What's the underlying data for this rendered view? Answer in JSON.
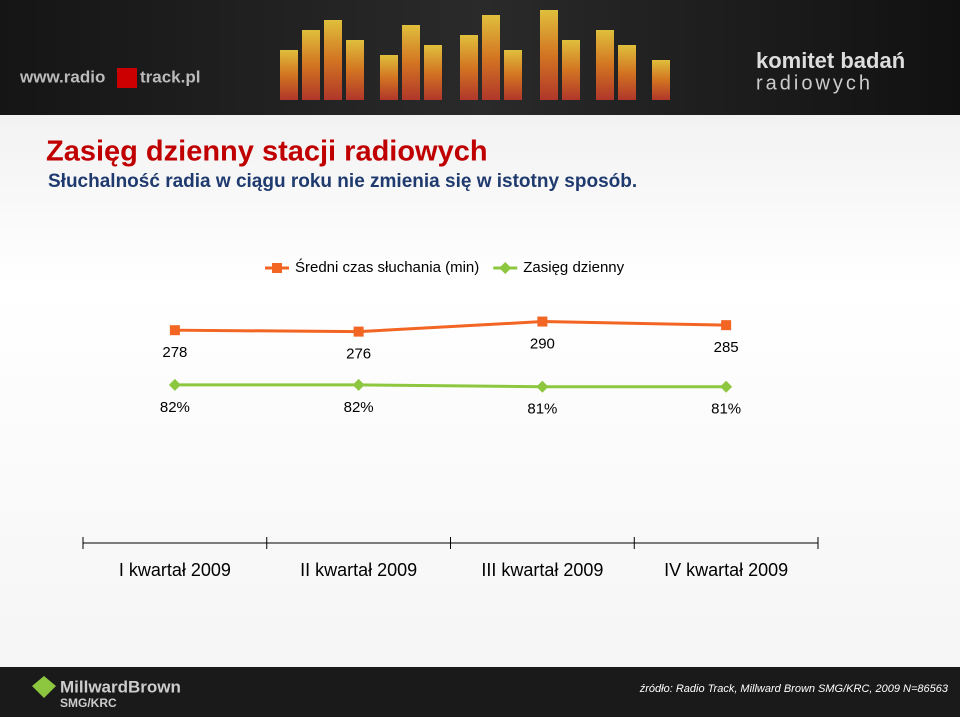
{
  "header": {
    "logo_left": "www.radio",
    "logo_left_2": "track.pl",
    "logo_right": "komitet badań",
    "logo_right_2": "radiowych"
  },
  "chart_data": {
    "type": "line",
    "title": "Zasięg dzienny stacji radiowych",
    "subtitle": "Słuchalność radia w ciągu roku nie zmienia się w istotny sposób.",
    "categories": [
      "I kwartał 2009",
      "II kwartał 2009",
      "III kwartał 2009",
      "IV kwartał 2009"
    ],
    "series": [
      {
        "name": "Średni czas słuchania (min)",
        "color": "#f26522",
        "marker": "square",
        "values": [
          278,
          276,
          290,
          285
        ]
      },
      {
        "name": "Zasięg dzienny",
        "color": "#8dc63f",
        "marker": "diamond",
        "axis": "y2",
        "values": [
          82,
          82,
          81,
          81
        ],
        "value_labels": [
          "82%",
          "82%",
          "81%",
          "81%"
        ]
      }
    ],
    "ylim": [
      0,
      320
    ],
    "y2lim": [
      0,
      130
    ],
    "legend": "top"
  },
  "footer": {
    "brand": "MillwardBrown",
    "brand_2": "SMG/KRC",
    "source": "źródło: Radio Track, Millward Brown SMG/KRC, 2009 N=86563"
  }
}
